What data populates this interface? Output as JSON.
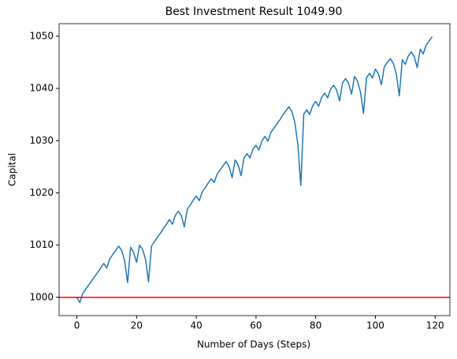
{
  "chart_data": {
    "type": "line",
    "title": "Best Investment Result 1049.90",
    "xlabel": "Number of Days (Steps)",
    "ylabel": "Capital",
    "x": [
      0,
      1,
      2,
      3,
      4,
      5,
      6,
      7,
      8,
      9,
      10,
      11,
      12,
      13,
      14,
      15,
      16,
      17,
      18,
      19,
      20,
      21,
      22,
      23,
      24,
      25,
      26,
      27,
      28,
      29,
      30,
      31,
      32,
      33,
      34,
      35,
      36,
      37,
      38,
      39,
      40,
      41,
      42,
      43,
      44,
      45,
      46,
      47,
      48,
      49,
      50,
      51,
      52,
      53,
      54,
      55,
      56,
      57,
      58,
      59,
      60,
      61,
      62,
      63,
      64,
      65,
      66,
      67,
      68,
      69,
      70,
      71,
      72,
      73,
      74,
      75,
      76,
      77,
      78,
      79,
      80,
      81,
      82,
      83,
      84,
      85,
      86,
      87,
      88,
      89,
      90,
      91,
      92,
      93,
      94,
      95,
      96,
      97,
      98,
      99,
      100,
      101,
      102,
      103,
      104,
      105,
      106,
      107,
      108,
      109,
      110,
      111,
      112,
      113,
      114,
      115,
      116,
      117,
      118,
      119
    ],
    "series": [
      {
        "name": "Capital",
        "color": "#1f77b4",
        "values": [
          1000,
          999.0,
          1000.8,
          1001.6,
          1002.4,
          1003.2,
          1004.0,
          1004.8,
          1005.6,
          1006.5,
          1005.6,
          1007.3,
          1008.2,
          1009.0,
          1009.8,
          1009.0,
          1007.0,
          1002.8,
          1009.6,
          1008.6,
          1006.7,
          1010.0,
          1009.2,
          1007.3,
          1003.0,
          1009.8,
          1010.7,
          1011.5,
          1012.3,
          1013.2,
          1014.0,
          1014.9,
          1014.0,
          1015.7,
          1016.5,
          1015.6,
          1013.5,
          1016.9,
          1017.7,
          1018.6,
          1019.4,
          1018.5,
          1020.2,
          1021.0,
          1021.9,
          1022.7,
          1022.0,
          1023.6,
          1024.4,
          1025.2,
          1026.0,
          1025.0,
          1022.9,
          1026.3,
          1025.4,
          1023.3,
          1026.7,
          1027.5,
          1026.7,
          1028.4,
          1029.1,
          1028.2,
          1030.0,
          1030.8,
          1029.9,
          1031.6,
          1032.4,
          1033.2,
          1034.0,
          1034.9,
          1035.7,
          1036.5,
          1035.6,
          1033.5,
          1029.4,
          1021.4,
          1035.1,
          1035.9,
          1035.0,
          1036.7,
          1037.5,
          1036.6,
          1038.3,
          1039.1,
          1038.2,
          1039.9,
          1040.6,
          1039.7,
          1037.6,
          1041.1,
          1041.9,
          1041.0,
          1038.9,
          1042.3,
          1041.4,
          1039.3,
          1035.2,
          1042.0,
          1042.9,
          1042.0,
          1043.7,
          1042.8,
          1040.7,
          1044.2,
          1045.0,
          1045.7,
          1044.8,
          1042.7,
          1038.6,
          1045.5,
          1044.6,
          1046.2,
          1047.0,
          1046.1,
          1044.0,
          1047.5,
          1046.6,
          1048.3,
          1049.1,
          1049.9
        ]
      }
    ],
    "reference_line": {
      "value": 1000,
      "color": "#ff0000"
    },
    "xlim": [
      -5.95,
      124.95
    ],
    "xticks": [
      0,
      20,
      40,
      60,
      80,
      100,
      120
    ],
    "ylim": [
      996.5,
      1052.4
    ],
    "yticks": [
      1000,
      1010,
      1020,
      1030,
      1040,
      1050
    ]
  }
}
